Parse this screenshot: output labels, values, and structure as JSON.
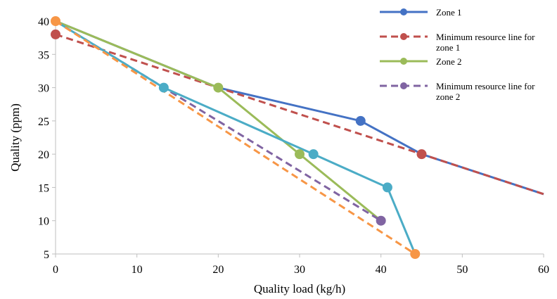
{
  "chart_data": {
    "type": "line",
    "title": "",
    "xlabel": "Quality load (kg/h)",
    "ylabel": "Quality (ppm)",
    "xlim": [
      0,
      60
    ],
    "ylim": [
      5,
      40
    ],
    "xticks": [
      0,
      10,
      20,
      30,
      40,
      50,
      60
    ],
    "yticks": [
      5,
      10,
      15,
      20,
      25,
      30,
      35,
      40
    ],
    "x_tick_labels": [
      "0",
      "10",
      "20",
      "30",
      "40",
      "50",
      "60"
    ],
    "y_tick_labels": [
      "5",
      "10",
      "15",
      "20",
      "25",
      "30",
      "35",
      "40"
    ],
    "grid": false,
    "legend_position": "top-right",
    "series": [
      {
        "name": "Zone 1",
        "style": "solid",
        "color": "#4472C4",
        "points": [
          [
            0,
            40
          ],
          [
            20,
            30
          ],
          [
            37.5,
            25
          ],
          [
            45,
            20
          ],
          [
            60,
            14
          ]
        ]
      },
      {
        "name": "Minimum resource line for zone 1",
        "style": "dashed",
        "color": "#C0504D",
        "points": [
          [
            0,
            38
          ],
          [
            45,
            20
          ],
          [
            60,
            14
          ]
        ]
      },
      {
        "name": "Zone 2",
        "style": "solid",
        "color": "#9BBB59",
        "points": [
          [
            0,
            40
          ],
          [
            20,
            30
          ],
          [
            30,
            20
          ],
          [
            40,
            10
          ]
        ]
      },
      {
        "name": "Minimum resource line for zone 2",
        "style": "dashed",
        "color": "#8064A2",
        "points": [
          [
            0,
            40
          ],
          [
            13.3,
            30
          ],
          [
            40,
            10
          ]
        ]
      },
      {
        "name": "",
        "style": "solid",
        "color": "#4BACC6",
        "points": [
          [
            0,
            40
          ],
          [
            13.3,
            30
          ],
          [
            31.7,
            20
          ],
          [
            40.8,
            15
          ],
          [
            44.2,
            5
          ]
        ]
      },
      {
        "name": "",
        "style": "dashed",
        "color": "#F79646",
        "points": [
          [
            0,
            40
          ],
          [
            44.2,
            5
          ]
        ]
      }
    ],
    "markers": [
      {
        "x": 0,
        "y": 40,
        "color": "#F79646"
      },
      {
        "x": 0,
        "y": 38,
        "color": "#C0504D"
      },
      {
        "x": 13.3,
        "y": 30,
        "color": "#4BACC6"
      },
      {
        "x": 20,
        "y": 30,
        "color": "#9BBB59"
      },
      {
        "x": 37.5,
        "y": 25,
        "color": "#4472C4"
      },
      {
        "x": 45,
        "y": 20,
        "color": "#C0504D"
      },
      {
        "x": 30,
        "y": 20,
        "color": "#9BBB59"
      },
      {
        "x": 31.7,
        "y": 20,
        "color": "#4BACC6"
      },
      {
        "x": 40.8,
        "y": 15,
        "color": "#4BACC6"
      },
      {
        "x": 40,
        "y": 10,
        "color": "#8064A2"
      },
      {
        "x": 44.2,
        "y": 5,
        "color": "#F79646"
      }
    ],
    "legend": [
      {
        "label": "Zone 1",
        "color": "#4472C4",
        "style": "solid"
      },
      {
        "label": "Minimum resource line for zone 1",
        "color": "#C0504D",
        "style": "dashed"
      },
      {
        "label": "Zone 2",
        "color": "#9BBB59",
        "style": "solid"
      },
      {
        "label": "Minimum resource line for zone 2",
        "color": "#8064A2",
        "style": "dashed"
      }
    ]
  }
}
